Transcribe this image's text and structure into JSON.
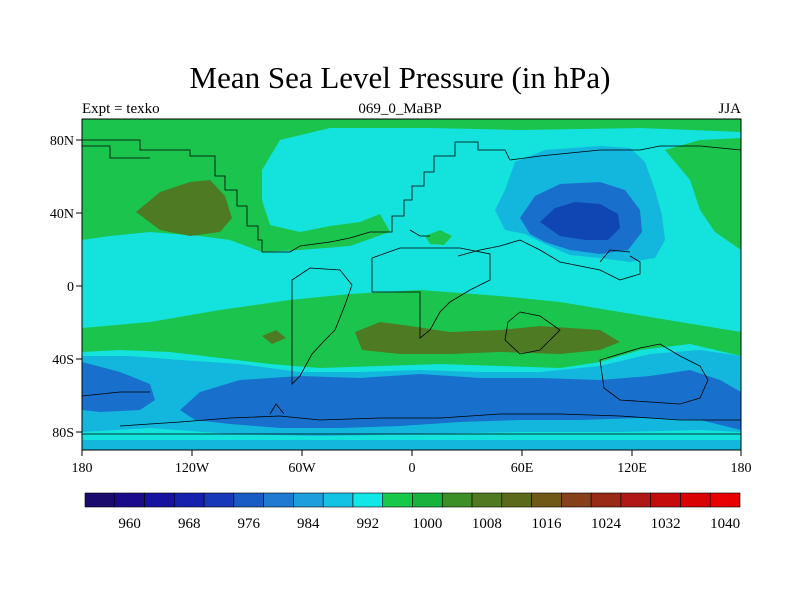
{
  "title": "Mean Sea Level Pressure (in hPa)",
  "subtitle_left": "Expt = texko",
  "subtitle_center": "069_0_MaBP",
  "subtitle_right": "JJA",
  "x_ticks": [
    "180",
    "120W",
    "60W",
    "0",
    "60E",
    "120E",
    "180"
  ],
  "y_ticks": [
    "80N",
    "40N",
    "0",
    "40S",
    "80S"
  ],
  "colorbar": {
    "labels": [
      "960",
      "968",
      "976",
      "984",
      "992",
      "1000",
      "1008",
      "1016",
      "1024",
      "1032",
      "1040"
    ],
    "colors": [
      "#1b0a6e",
      "#1a0b8a",
      "#16139e",
      "#1520ad",
      "#1738b8",
      "#1a5cc5",
      "#1f7ad2",
      "#1e9edc",
      "#14c3e4",
      "#12e6e6",
      "#18c84a",
      "#17b33c",
      "#3c8f25",
      "#4f7a1f",
      "#5a6a1a",
      "#6e5a16",
      "#86401a",
      "#9a2a18",
      "#b01818",
      "#c40c0c",
      "#d80404",
      "#e80000"
    ]
  },
  "colors": {
    "c992": "#13b7dd",
    "c984": "#1870cc",
    "c976": "#1046b4",
    "c1000": "#14e2dd",
    "c1008": "#1bc54d",
    "c1016": "#4d7a23"
  }
}
